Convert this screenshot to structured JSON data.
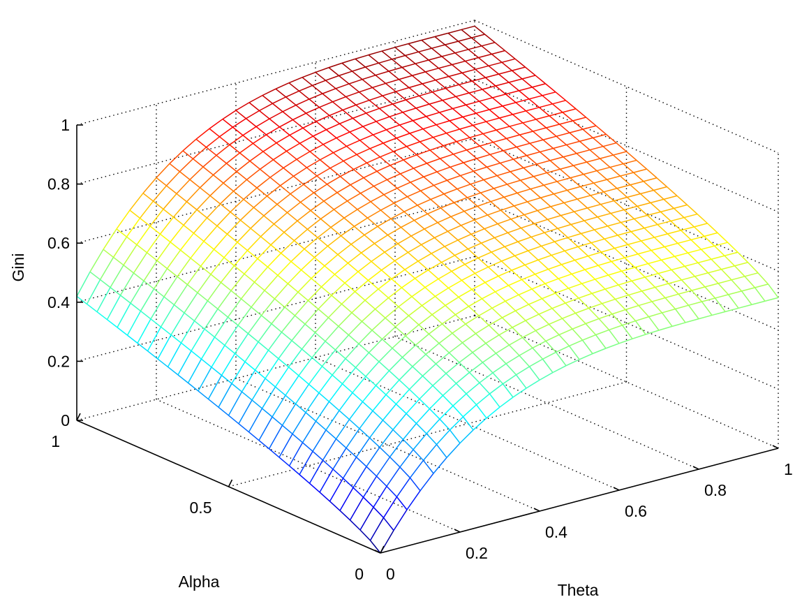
{
  "chart_data": {
    "type": "surface",
    "xlabel": "Theta",
    "ylabel": "Alpha",
    "zlabel": "Gini",
    "xlim": [
      0,
      1
    ],
    "ylim": [
      0,
      1
    ],
    "zlim": [
      0,
      1
    ],
    "x_ticks": [
      "0",
      "0.2",
      "0.4",
      "0.6",
      "0.8",
      "1"
    ],
    "x_tick_values": [
      0,
      0.2,
      0.4,
      0.6,
      0.8,
      1
    ],
    "y_ticks": [
      "0",
      "0.5",
      "1"
    ],
    "y_tick_values": [
      0,
      0.5,
      1
    ],
    "z_ticks": [
      "0",
      "0.2",
      "0.4",
      "0.6",
      "0.8",
      "1"
    ],
    "z_tick_values": [
      0,
      0.2,
      0.4,
      0.6,
      0.8,
      1
    ],
    "grid": true,
    "colormap": "jet",
    "mesh": {
      "n_theta": 31,
      "n_alpha": 31,
      "theta_range": [
        0,
        1
      ],
      "alpha_range": [
        0,
        1
      ],
      "corner_values": [
        {
          "theta": 0,
          "alpha": 0,
          "gini": 0.0
        },
        {
          "theta": 0,
          "alpha": 1,
          "gini": 0.42
        },
        {
          "theta": 1,
          "alpha": 0,
          "gini": 0.51
        },
        {
          "theta": 1,
          "alpha": 1,
          "gini": 0.98
        }
      ]
    }
  }
}
